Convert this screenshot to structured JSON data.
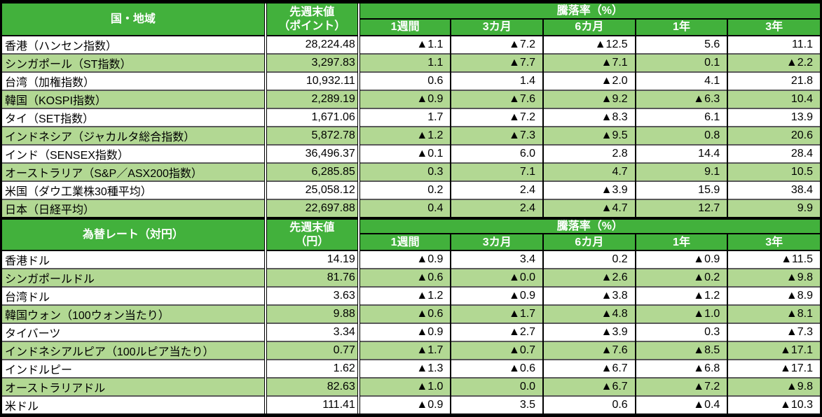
{
  "negative_marker": "▲",
  "colors": {
    "header_green": "#42B13C",
    "row_alt_green": "#B2D893",
    "row_white": "#FFFFFF",
    "divider_gray": "#5A5A5A",
    "negative_red": "#FF0000",
    "border_black": "#000000",
    "header_text": "#FFFFFF"
  },
  "chart_data": [
    {
      "type": "table",
      "title": "国・地域",
      "value_header": [
        "先週末値",
        "（ポイント）"
      ],
      "group_header": "騰落率（%）",
      "period_headers": [
        "1週間",
        "3カ月",
        "6カ月",
        "1年",
        "3年"
      ],
      "rows": [
        {
          "name": "香港（ハンセン指数）",
          "value": "28,224.48",
          "changes": [
            "▲1.1",
            "▲7.2",
            "▲12.5",
            "5.6",
            "11.1"
          ]
        },
        {
          "name": "シンガポール（ST指数）",
          "value": "3,297.83",
          "changes": [
            "1.1",
            "▲7.7",
            "▲7.1",
            "0.1",
            "▲2.2"
          ]
        },
        {
          "name": "台湾（加権指数）",
          "value": "10,932.11",
          "changes": [
            "0.6",
            "1.4",
            "▲2.0",
            "4.1",
            "21.8"
          ]
        },
        {
          "name": "韓国（KOSPI指数）",
          "value": "2,289.19",
          "changes": [
            "▲0.9",
            "▲7.6",
            "▲9.2",
            "▲6.3",
            "10.4"
          ]
        },
        {
          "name": "タイ（SET指数）",
          "value": "1,671.06",
          "changes": [
            "1.7",
            "▲7.2",
            "▲8.3",
            "6.1",
            "13.9"
          ]
        },
        {
          "name": "インドネシア（ジャカルタ総合指数）",
          "value": "5,872.78",
          "changes": [
            "▲1.2",
            "▲7.3",
            "▲9.5",
            "0.8",
            "20.6"
          ]
        },
        {
          "name": "インド（SENSEX指数）",
          "value": "36,496.37",
          "changes": [
            "▲0.1",
            "6.0",
            "2.8",
            "14.4",
            "28.4"
          ]
        },
        {
          "name": "オーストラリア（S&P／ASX200指数）",
          "value": "6,285.85",
          "changes": [
            "0.3",
            "7.1",
            "4.7",
            "9.1",
            "10.5"
          ]
        },
        {
          "name": "米国（ダウ工業株30種平均）",
          "value": "25,058.12",
          "changes": [
            "0.2",
            "2.4",
            "▲3.9",
            "15.9",
            "38.4"
          ]
        },
        {
          "name": "日本（日経平均）",
          "value": "22,697.88",
          "changes": [
            "0.4",
            "2.4",
            "▲4.7",
            "12.7",
            "9.9"
          ]
        }
      ]
    },
    {
      "type": "table",
      "title": "為替レート（対円）",
      "value_header": [
        "先週末値",
        "（円）"
      ],
      "group_header": "騰落率（%）",
      "period_headers": [
        "1週間",
        "3カ月",
        "6カ月",
        "1年",
        "3年"
      ],
      "rows": [
        {
          "name": "香港ドル",
          "value": "14.19",
          "changes": [
            "▲0.9",
            "3.4",
            "0.2",
            "▲0.9",
            "▲11.5"
          ]
        },
        {
          "name": "シンガポールドル",
          "value": "81.76",
          "changes": [
            "▲0.6",
            "▲0.0",
            "▲2.6",
            "▲0.2",
            "▲9.8"
          ]
        },
        {
          "name": "台湾ドル",
          "value": "3.63",
          "changes": [
            "▲1.2",
            "▲0.9",
            "▲3.8",
            "▲1.2",
            "▲8.9"
          ]
        },
        {
          "name": "韓国ウォン（100ウォン当たり）",
          "value": "9.88",
          "changes": [
            "▲0.6",
            "▲1.7",
            "▲4.8",
            "▲1.0",
            "▲8.1"
          ]
        },
        {
          "name": "タイバーツ",
          "value": "3.34",
          "changes": [
            "▲0.9",
            "▲2.7",
            "▲3.9",
            "0.3",
            "▲7.3"
          ]
        },
        {
          "name": "インドネシアルピア（100ルピア当たり）",
          "value": "0.77",
          "changes": [
            "▲1.7",
            "▲0.7",
            "▲7.6",
            "▲8.5",
            "▲17.1"
          ]
        },
        {
          "name": "インドルピー",
          "value": "1.62",
          "changes": [
            "▲1.3",
            "▲0.6",
            "▲6.7",
            "▲6.8",
            "▲17.1"
          ]
        },
        {
          "name": "オーストラリアドル",
          "value": "82.63",
          "changes": [
            "▲1.0",
            "0.0",
            "▲6.7",
            "▲7.2",
            "▲9.8"
          ]
        },
        {
          "name": "米ドル",
          "value": "111.41",
          "changes": [
            "▲0.9",
            "3.5",
            "0.6",
            "▲0.4",
            "▲10.3"
          ]
        }
      ]
    }
  ]
}
